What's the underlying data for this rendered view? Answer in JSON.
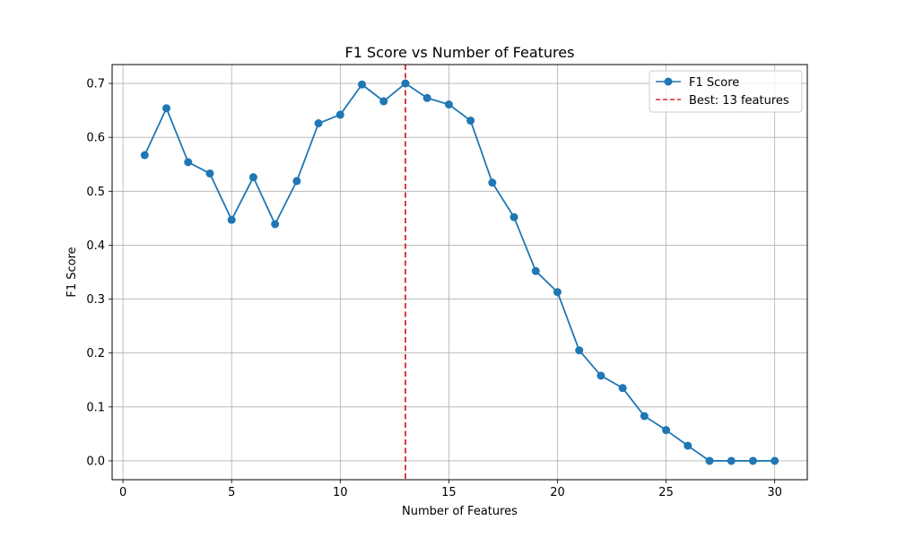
{
  "chart_data": {
    "type": "line",
    "title": "F1 Score vs Number of Features",
    "xlabel": "Number of Features",
    "ylabel": "F1 Score",
    "xlim": [
      -0.5,
      31.5
    ],
    "ylim": [
      -0.035,
      0.735
    ],
    "xticks": [
      0,
      5,
      10,
      15,
      20,
      25,
      30
    ],
    "yticks": [
      0.0,
      0.1,
      0.2,
      0.3,
      0.4,
      0.5,
      0.6,
      0.7
    ],
    "ytick_labels": [
      "0.0",
      "0.1",
      "0.2",
      "0.3",
      "0.4",
      "0.5",
      "0.6",
      "0.7"
    ],
    "grid": true,
    "legend_position": "top-right",
    "series": [
      {
        "name": "F1 Score",
        "color": "#1f77b4",
        "marker": "circle",
        "x": [
          1,
          2,
          3,
          4,
          5,
          6,
          7,
          8,
          9,
          10,
          11,
          12,
          13,
          14,
          15,
          16,
          17,
          18,
          19,
          20,
          21,
          22,
          23,
          24,
          25,
          26,
          27,
          28,
          29,
          30
        ],
        "y": [
          0.567,
          0.654,
          0.554,
          0.533,
          0.447,
          0.526,
          0.439,
          0.519,
          0.626,
          0.642,
          0.698,
          0.667,
          0.7,
          0.673,
          0.661,
          0.631,
          0.516,
          0.452,
          0.352,
          0.313,
          0.205,
          0.158,
          0.135,
          0.083,
          0.057,
          0.028,
          0.0,
          0.0,
          0.0,
          0.0
        ]
      }
    ],
    "reference_lines": [
      {
        "orientation": "vertical",
        "x": 13,
        "label": "Best: 13 features",
        "color": "#d62728",
        "style": "dashed"
      }
    ]
  }
}
